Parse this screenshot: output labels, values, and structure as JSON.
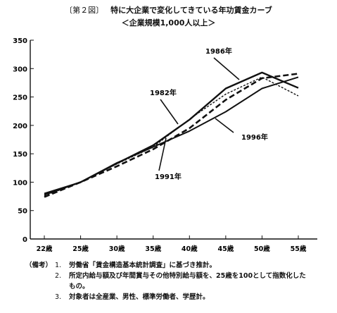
{
  "title": {
    "figure": "〔第２図〕",
    "text": "特に大企業で変化してきている年功賃金カーブ"
  },
  "subtitle": "＜企業規模1,000人以上＞",
  "notes": {
    "label": "（備考）",
    "items": [
      {
        "num": "1.",
        "text": "労働省「賃金構造基本統計調査」に基づき推計。"
      },
      {
        "num": "2.",
        "text": "所定内給与額及び年間賞与その他特別給与額を、25歳を100として指数化した",
        "cont": "もの。"
      },
      {
        "num": "3.",
        "text": "対象者は全産業、男性、標準労働者、学歴計。"
      }
    ]
  },
  "chart_data": {
    "type": "line",
    "categories": [
      "22歳",
      "25歳",
      "30歳",
      "35歳",
      "40歳",
      "45歳",
      "50歳",
      "55歳"
    ],
    "ylim": [
      0,
      350
    ],
    "yticks": [
      0,
      50,
      100,
      150,
      200,
      250,
      300,
      350
    ],
    "grid": false,
    "series": [
      {
        "name": "1986年",
        "style": "solid-thick",
        "values": [
          78,
          100,
          133,
          165,
          210,
          265,
          293,
          266
        ]
      },
      {
        "name": "1982年",
        "style": "dotted",
        "values": [
          76,
          100,
          132,
          162,
          211,
          255,
          285,
          252
        ]
      },
      {
        "name": "1991年",
        "style": "dashed",
        "values": [
          74,
          100,
          128,
          158,
          195,
          245,
          283,
          291
        ]
      },
      {
        "name": "1996年",
        "style": "solid",
        "values": [
          80,
          100,
          134,
          162,
          190,
          224,
          265,
          285
        ]
      }
    ]
  }
}
